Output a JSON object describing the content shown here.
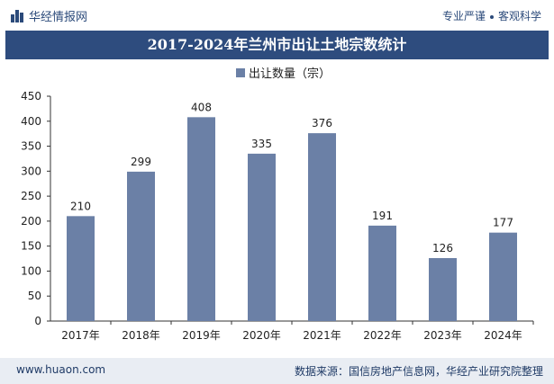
{
  "header": {
    "brand": "华经情报网",
    "tagline_left": "专业严谨",
    "tagline_right": "客观科学"
  },
  "title": "2017-2024年兰州市出让土地宗数统计",
  "footer": {
    "website": "www.huaon.com",
    "source": "数据来源：国信房地产信息网，华经产业研究院整理"
  },
  "colors": {
    "bar": "#6b80a6",
    "title_bg": "#2e4c7e",
    "footer_bg": "#e9edf3"
  },
  "chart_data": {
    "type": "bar",
    "title": "2017-2024年兰州市出让土地宗数统计",
    "legend": "出让数量（宗）",
    "categories": [
      "2017年",
      "2018年",
      "2019年",
      "2020年",
      "2021年",
      "2022年",
      "2023年",
      "2024年"
    ],
    "values": [
      210,
      299,
      408,
      335,
      376,
      191,
      126,
      177
    ],
    "yticks": [
      0,
      50,
      100,
      150,
      200,
      250,
      300,
      350,
      400,
      450
    ],
    "ylim": [
      0,
      450
    ],
    "xlabel": "",
    "ylabel": ""
  }
}
